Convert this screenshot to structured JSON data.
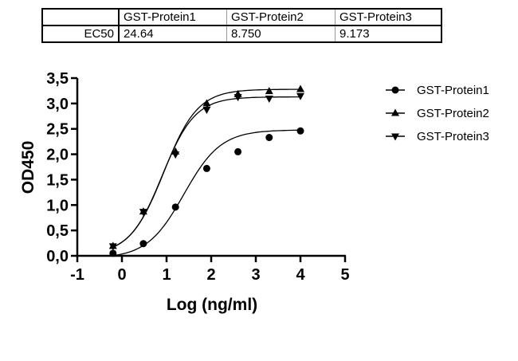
{
  "table": {
    "header": [
      "",
      "GST-Protein1",
      "GST-Protein2",
      "GST-Protein3"
    ],
    "rows": [
      {
        "label": "EC50",
        "values": [
          "24.64",
          "8.750",
          "9.173"
        ]
      }
    ]
  },
  "chart_data": {
    "type": "scatter",
    "title": "",
    "xlabel": "Log (ng/ml)",
    "ylabel": "OD450",
    "xlim": [
      -1,
      5
    ],
    "ylim": [
      0,
      3.5
    ],
    "x_ticks": [
      "-1",
      "0",
      "1",
      "2",
      "3",
      "4",
      "5"
    ],
    "y_ticks": [
      "0,0",
      "0,5",
      "1,0",
      "1,5",
      "2,0",
      "2,5",
      "3,0",
      "3,5"
    ],
    "grid": false,
    "legend_position": "right",
    "fit": "4-parameter logistic curve",
    "x": [
      -0.2,
      0.48,
      1.2,
      1.9,
      2.6,
      3.3,
      4.0
    ],
    "series": [
      {
        "name": "GST-Protein1",
        "marker": "circle",
        "values": [
          0.05,
          0.24,
          0.96,
          1.72,
          2.05,
          2.33,
          2.46
        ]
      },
      {
        "name": "GST-Protein2",
        "marker": "triangle-up",
        "values": [
          0.19,
          0.87,
          2.05,
          3.0,
          3.18,
          3.24,
          3.28
        ]
      },
      {
        "name": "GST-Protein3",
        "marker": "triangle-down",
        "values": [
          0.19,
          0.87,
          2.0,
          2.88,
          3.13,
          3.1,
          3.15
        ]
      }
    ]
  }
}
